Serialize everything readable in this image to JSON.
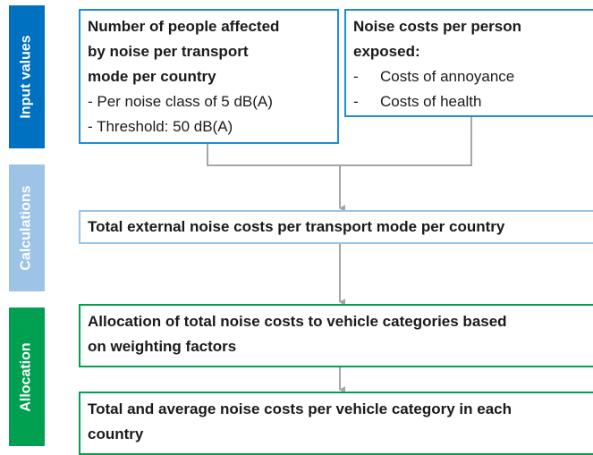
{
  "stages": [
    {
      "label": "Input values"
    },
    {
      "label": "Calculations"
    },
    {
      "label": "Allocation"
    }
  ],
  "boxes": [
    {
      "title_lines": [
        "Number of people affected",
        "by noise per transport",
        "mode per country"
      ],
      "items": [
        "- Per noise class of 5 dB(A)",
        "- Threshold: 50 dB(A)"
      ]
    },
    {
      "title_lines": [
        "Noise costs per person",
        "exposed:"
      ],
      "bullet": "-",
      "items": [
        "Costs of annoyance",
        "Costs of health"
      ]
    },
    {
      "title_lines": [
        "Total external noise costs per transport mode per country"
      ]
    },
    {
      "title_lines": [
        "Allocation of total noise costs to vehicle categories based",
        "on weighting factors"
      ]
    },
    {
      "title_lines": [
        "Total and average noise costs per vehicle category in each",
        "country"
      ]
    }
  ]
}
